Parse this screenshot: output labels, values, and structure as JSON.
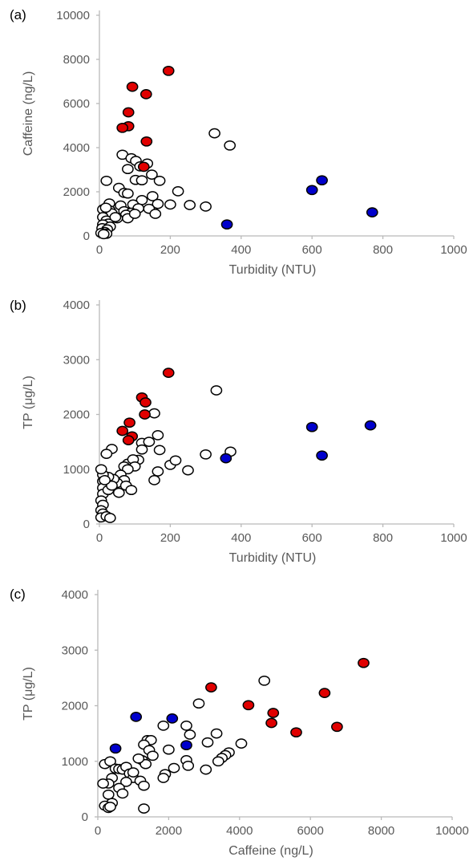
{
  "colors": {
    "red_fill": "#e00000",
    "blue_fill": "#0000cc",
    "open_fill": "#ffffff",
    "marker_edge": "#000000",
    "axis": "#b9b9b9",
    "text": "#595959"
  },
  "chart_data": [
    {
      "type": "scatter",
      "panel_label": "(a)",
      "xlabel": "Turbidity (NTU)",
      "ylabel": "Caffeine (ng/L)",
      "xlim": [
        0,
        1000
      ],
      "ylim": [
        0,
        10000
      ],
      "xticks": [
        0,
        200,
        400,
        600,
        800,
        1000
      ],
      "yticks": [
        0,
        2000,
        4000,
        6000,
        8000,
        10000
      ],
      "grid": false,
      "series": [
        {
          "marker": "red",
          "points": [
            [
              195,
              7480
            ],
            [
              93,
              6760
            ],
            [
              132,
              6420
            ],
            [
              82,
              5600
            ],
            [
              82,
              4970
            ],
            [
              65,
              4900
            ],
            [
              133,
              4280
            ],
            [
              125,
              3130
            ]
          ]
        },
        {
          "marker": "blue",
          "points": [
            [
              628,
              2520
            ],
            [
              600,
              2080
            ],
            [
              770,
              1070
            ],
            [
              360,
              520
            ]
          ]
        },
        {
          "marker": "open",
          "points": [
            [
              325,
              4650
            ],
            [
              368,
              4100
            ],
            [
              65,
              3680
            ],
            [
              90,
              3520
            ],
            [
              103,
              3400
            ],
            [
              135,
              3280
            ],
            [
              115,
              3150
            ],
            [
              80,
              3030
            ],
            [
              148,
              2780
            ],
            [
              20,
              2500
            ],
            [
              102,
              2540
            ],
            [
              120,
              2520
            ],
            [
              170,
              2500
            ],
            [
              55,
              2180
            ],
            [
              70,
              1950
            ],
            [
              80,
              1920
            ],
            [
              222,
              2020
            ],
            [
              150,
              1800
            ],
            [
              120,
              1620
            ],
            [
              28,
              1470
            ],
            [
              60,
              1380
            ],
            [
              95,
              1420
            ],
            [
              165,
              1450
            ],
            [
              200,
              1420
            ],
            [
              255,
              1400
            ],
            [
              300,
              1330
            ],
            [
              110,
              1250
            ],
            [
              140,
              1230
            ],
            [
              10,
              1200
            ],
            [
              30,
              1150
            ],
            [
              70,
              1120
            ],
            [
              35,
              1020
            ],
            [
              90,
              1050
            ],
            [
              75,
              960
            ],
            [
              158,
              1000
            ],
            [
              10,
              850
            ],
            [
              50,
              800
            ],
            [
              80,
              800
            ],
            [
              20,
              700
            ],
            [
              25,
              560
            ],
            [
              10,
              520
            ],
            [
              30,
              420
            ],
            [
              8,
              350
            ],
            [
              22,
              300
            ],
            [
              15,
              180
            ],
            [
              5,
              130
            ],
            [
              20,
              100
            ],
            [
              12,
              80
            ],
            [
              45,
              850
            ],
            [
              100,
              1000
            ],
            [
              18,
              1280
            ]
          ]
        }
      ]
    },
    {
      "type": "scatter",
      "panel_label": "(b)",
      "xlabel": "Turbidity (NTU)",
      "ylabel": "TP (μg/L)",
      "xlim": [
        0,
        1000
      ],
      "ylim": [
        0,
        4000
      ],
      "xticks": [
        0,
        200,
        400,
        600,
        800,
        1000
      ],
      "yticks": [
        0,
        1000,
        2000,
        3000,
        4000
      ],
      "grid": false,
      "series": [
        {
          "marker": "red",
          "points": [
            [
              195,
              2760
            ],
            [
              120,
              2310
            ],
            [
              130,
              2220
            ],
            [
              128,
              2000
            ],
            [
              85,
              1850
            ],
            [
              65,
              1700
            ],
            [
              92,
              1600
            ],
            [
              82,
              1530
            ]
          ]
        },
        {
          "marker": "blue",
          "points": [
            [
              600,
              1770
            ],
            [
              765,
              1800
            ],
            [
              628,
              1250
            ],
            [
              357,
              1200
            ]
          ]
        },
        {
          "marker": "open",
          "points": [
            [
              330,
              2440
            ],
            [
              155,
              2020
            ],
            [
              165,
              1620
            ],
            [
              120,
              1480
            ],
            [
              140,
              1500
            ],
            [
              120,
              1360
            ],
            [
              370,
              1320
            ],
            [
              300,
              1270
            ],
            [
              170,
              1350
            ],
            [
              35,
              1370
            ],
            [
              20,
              1280
            ],
            [
              200,
              1080
            ],
            [
              215,
              1160
            ],
            [
              110,
              1170
            ],
            [
              80,
              1100
            ],
            [
              95,
              1180
            ],
            [
              250,
              980
            ],
            [
              165,
              960
            ],
            [
              155,
              800
            ],
            [
              100,
              1050
            ],
            [
              70,
              1050
            ],
            [
              80,
              1000
            ],
            [
              60,
              900
            ],
            [
              70,
              800
            ],
            [
              50,
              750
            ],
            [
              75,
              700
            ],
            [
              90,
              620
            ],
            [
              40,
              820
            ],
            [
              25,
              860
            ],
            [
              10,
              900
            ],
            [
              5,
              1000
            ],
            [
              10,
              780
            ],
            [
              10,
              660
            ],
            [
              10,
              550
            ],
            [
              5,
              430
            ],
            [
              10,
              350
            ],
            [
              5,
              250
            ],
            [
              10,
              190
            ],
            [
              5,
              120
            ],
            [
              20,
              140
            ],
            [
              30,
              110
            ],
            [
              25,
              620
            ],
            [
              35,
              700
            ],
            [
              55,
              570
            ],
            [
              15,
              800
            ]
          ]
        }
      ]
    },
    {
      "type": "scatter",
      "panel_label": "(c)",
      "xlabel": "Caffeine (ng/L)",
      "ylabel": "TP (μg/L)",
      "xlim": [
        0,
        10000
      ],
      "ylim": [
        0,
        4000
      ],
      "xticks": [
        0,
        2000,
        4000,
        6000,
        8000,
        10000
      ],
      "yticks": [
        0,
        1000,
        2000,
        3000,
        4000
      ],
      "grid": false,
      "series": [
        {
          "marker": "red",
          "points": [
            [
              7500,
              2770
            ],
            [
              3200,
              2330
            ],
            [
              6400,
              2230
            ],
            [
              4250,
              2010
            ],
            [
              4950,
              1870
            ],
            [
              4900,
              1690
            ],
            [
              6750,
              1620
            ],
            [
              5600,
              1520
            ]
          ]
        },
        {
          "marker": "blue",
          "points": [
            [
              1080,
              1800
            ],
            [
              2100,
              1770
            ],
            [
              2500,
              1290
            ],
            [
              500,
              1230
            ]
          ]
        },
        {
          "marker": "open",
          "points": [
            [
              4700,
              2450
            ],
            [
              2850,
              2040
            ],
            [
              1850,
              1640
            ],
            [
              2500,
              1640
            ],
            [
              2600,
              1480
            ],
            [
              3350,
              1500
            ],
            [
              3100,
              1340
            ],
            [
              2000,
              1210
            ],
            [
              1400,
              1380
            ],
            [
              1500,
              1380
            ],
            [
              1300,
              1300
            ],
            [
              1450,
              1200
            ],
            [
              1550,
              1100
            ],
            [
              1250,
              1020
            ],
            [
              1350,
              950
            ],
            [
              1150,
              1050
            ],
            [
              4050,
              1320
            ],
            [
              3700,
              1160
            ],
            [
              3600,
              1110
            ],
            [
              3500,
              1060
            ],
            [
              3400,
              1000
            ],
            [
              2500,
              1020
            ],
            [
              2550,
              920
            ],
            [
              1900,
              770
            ],
            [
              1850,
              700
            ],
            [
              2150,
              880
            ],
            [
              3050,
              850
            ],
            [
              200,
              950
            ],
            [
              350,
              1000
            ],
            [
              500,
              870
            ],
            [
              600,
              860
            ],
            [
              700,
              850
            ],
            [
              800,
              900
            ],
            [
              900,
              780
            ],
            [
              1000,
              700
            ],
            [
              1200,
              650
            ],
            [
              1300,
              560
            ],
            [
              800,
              630
            ],
            [
              600,
              520
            ],
            [
              400,
              700
            ],
            [
              300,
              600
            ],
            [
              150,
              600
            ],
            [
              300,
              400
            ],
            [
              400,
              250
            ],
            [
              200,
              200
            ],
            [
              300,
              160
            ],
            [
              350,
              180
            ],
            [
              1300,
              150
            ],
            [
              700,
              420
            ],
            [
              1000,
              800
            ]
          ]
        }
      ]
    }
  ]
}
